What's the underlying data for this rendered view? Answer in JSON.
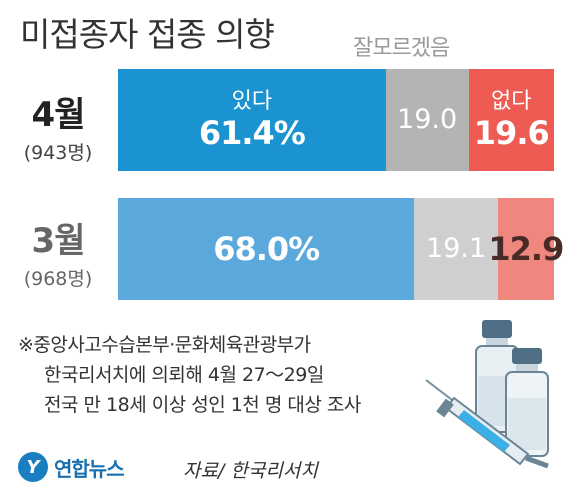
{
  "chart_data": {
    "type": "bar",
    "stacked": true,
    "orientation": "horizontal",
    "title": "미접종자 접종 의향",
    "categories": [
      "4월",
      "3월"
    ],
    "category_counts": [
      "(943명)",
      "(968명)"
    ],
    "series": [
      {
        "name": "있다",
        "values": [
          61.4,
          68.0
        ],
        "colors": [
          "#1b93d0",
          "#5ba8dc"
        ]
      },
      {
        "name": "잘모르겠음",
        "values": [
          19.0,
          19.1
        ],
        "colors": [
          "#b4b4b4",
          "#cfcfcf"
        ]
      },
      {
        "name": "없다",
        "values": [
          19.6,
          12.9
        ],
        "colors": [
          "#ed5b52",
          "#f0877e"
        ]
      }
    ],
    "unit": "%",
    "xlim": [
      0,
      100
    ]
  },
  "labels": {
    "row0_yes_label": "있다",
    "row0_yes_value": "61.4%",
    "row0_unsure_value": "19.0",
    "row0_no_label": "없다",
    "row0_no_value": "19.6",
    "row1_yes_value": "68.0%",
    "row1_unsure_value": "19.1",
    "row1_no_value": "12.9",
    "header_unsure": "잘모르겠음"
  },
  "note": {
    "line1": "※중앙사고수습본부·문화체육관광부가",
    "line2": "한국리서치에 의뢰해 4월 27～29일",
    "line3": "전국 만 18세 이상 성인 1천 명 대상 조사"
  },
  "footer": {
    "logo_text": "연합뉴스",
    "source": "자료/ 한국리서치"
  },
  "colors": {
    "row0_text_on_no": "#ffffff",
    "row1_text_on_no": "#4a2a26"
  },
  "icons": [
    "logo-icon",
    "vaccine-vial-icon",
    "syringe-icon"
  ]
}
